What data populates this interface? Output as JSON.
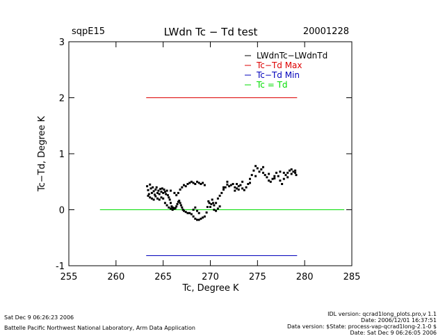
{
  "header": {
    "site": "sqpE15",
    "title": "LWdn Tc − Td test",
    "date": "20001228"
  },
  "footer": {
    "left_line1": "Sat Dec  9 06:26:23 2006",
    "left_line2": "Battelle Pacific Northwest National Laboratory, Arm Data Application",
    "right_line1": "IDL version: qcrad1long_plots.pro,v 1.1",
    "right_line2": "Date: 2006/12/01 16:37:51",
    "right_line3": "Data version: $State: process-vap-qcrad1long-2.1-0 $",
    "right_line4": "Date: Sat Dec  9 06:26:05 2006"
  },
  "colors": {
    "series": "#000000",
    "max": "#dd0000",
    "min": "#0000bb",
    "zero": "#00dd00"
  },
  "chart_data": {
    "type": "scatter",
    "xlabel": "Tc, Degree K",
    "ylabel": "Tc−Td, Degree K",
    "xlim": [
      255,
      285
    ],
    "ylim": [
      -1,
      3
    ],
    "xticks": [
      255,
      260,
      265,
      270,
      275,
      280,
      285
    ],
    "yticks": [
      -1,
      0,
      1,
      2,
      3
    ],
    "legend": [
      "LWdnTc−LWdnTd",
      "Tc−Td Max",
      "Tc−Td Min",
      "Tc = Td"
    ],
    "legend_placement": "top-right",
    "grid": false,
    "reference_lines": [
      {
        "name": "Tc−Td Max",
        "y": 2.0,
        "x": [
          263.2,
          279.2
        ]
      },
      {
        "name": "Tc−Td Min",
        "y": -0.82,
        "x": [
          263.2,
          279.2
        ]
      },
      {
        "name": "Tc = Td",
        "y": 0.0,
        "x": [
          258.3,
          284.2
        ]
      }
    ],
    "series": [
      {
        "name": "LWdnTc−LWdnTd",
        "points": [
          [
            263.3,
            0.42
          ],
          [
            263.4,
            0.35
          ],
          [
            263.5,
            0.28
          ],
          [
            263.6,
            0.45
          ],
          [
            263.7,
            0.38
          ],
          [
            263.8,
            0.3
          ],
          [
            263.9,
            0.4
          ],
          [
            264.0,
            0.33
          ],
          [
            264.1,
            0.27
          ],
          [
            264.2,
            0.36
          ],
          [
            264.3,
            0.4
          ],
          [
            264.4,
            0.3
          ],
          [
            264.5,
            0.34
          ],
          [
            264.6,
            0.28
          ],
          [
            264.7,
            0.37
          ],
          [
            264.8,
            0.32
          ],
          [
            264.9,
            0.38
          ],
          [
            265.0,
            0.3
          ],
          [
            265.1,
            0.36
          ],
          [
            265.2,
            0.32
          ],
          [
            265.3,
            0.28
          ],
          [
            265.4,
            0.34
          ],
          [
            265.5,
            0.26
          ],
          [
            265.6,
            0.22
          ],
          [
            265.7,
            0.18
          ],
          [
            265.8,
            0.12
          ],
          [
            265.9,
            0.06
          ],
          [
            266.0,
            0.04
          ],
          [
            266.1,
            0.03
          ],
          [
            266.2,
            0.02
          ],
          [
            266.3,
            0.03
          ],
          [
            266.4,
            0.06
          ],
          [
            266.5,
            0.1
          ],
          [
            266.6,
            0.14
          ],
          [
            266.7,
            0.16
          ],
          [
            266.8,
            0.12
          ],
          [
            266.9,
            0.08
          ],
          [
            267.0,
            0.04
          ],
          [
            267.1,
            0.0
          ],
          [
            267.2,
            -0.02
          ],
          [
            267.4,
            -0.04
          ],
          [
            267.6,
            -0.06
          ],
          [
            267.8,
            -0.06
          ],
          [
            268.0,
            -0.08
          ],
          [
            268.2,
            -0.12
          ],
          [
            268.4,
            -0.16
          ],
          [
            268.6,
            -0.18
          ],
          [
            268.8,
            -0.18
          ],
          [
            269.0,
            -0.16
          ],
          [
            269.2,
            -0.14
          ],
          [
            269.4,
            -0.12
          ],
          [
            269.6,
            -0.05
          ],
          [
            269.7,
            0.05
          ],
          [
            269.8,
            0.15
          ],
          [
            269.9,
            0.12
          ],
          [
            270.0,
            0.05
          ],
          [
            270.1,
            0.1
          ],
          [
            270.2,
            0.18
          ],
          [
            270.3,
            0.12
          ],
          [
            270.4,
            0.08
          ],
          [
            270.6,
            0.12
          ],
          [
            270.8,
            0.2
          ],
          [
            271.0,
            0.25
          ],
          [
            271.2,
            0.3
          ],
          [
            271.4,
            0.36
          ],
          [
            271.6,
            0.4
          ],
          [
            271.8,
            0.45
          ],
          [
            272.0,
            0.42
          ],
          [
            272.2,
            0.44
          ],
          [
            272.4,
            0.46
          ],
          [
            272.6,
            0.4
          ],
          [
            272.8,
            0.38
          ],
          [
            273.0,
            0.42
          ],
          [
            273.2,
            0.44
          ],
          [
            273.4,
            0.38
          ],
          [
            273.6,
            0.35
          ],
          [
            273.8,
            0.4
          ],
          [
            274.0,
            0.46
          ],
          [
            274.2,
            0.55
          ],
          [
            274.4,
            0.62
          ],
          [
            274.6,
            0.7
          ],
          [
            274.8,
            0.78
          ],
          [
            275.0,
            0.74
          ],
          [
            275.2,
            0.68
          ],
          [
            275.4,
            0.72
          ],
          [
            275.6,
            0.66
          ],
          [
            275.8,
            0.62
          ],
          [
            276.0,
            0.58
          ],
          [
            276.2,
            0.52
          ],
          [
            276.4,
            0.5
          ],
          [
            276.6,
            0.55
          ],
          [
            276.8,
            0.6
          ],
          [
            277.0,
            0.66
          ],
          [
            277.2,
            0.6
          ],
          [
            277.4,
            0.52
          ],
          [
            277.6,
            0.46
          ],
          [
            277.8,
            0.55
          ],
          [
            278.0,
            0.62
          ],
          [
            278.2,
            0.66
          ],
          [
            278.4,
            0.7
          ],
          [
            278.6,
            0.64
          ],
          [
            278.8,
            0.68
          ],
          [
            279.0,
            0.66
          ],
          [
            279.1,
            0.62
          ],
          [
            263.4,
            0.25
          ],
          [
            263.6,
            0.22
          ],
          [
            263.8,
            0.2
          ],
          [
            264.0,
            0.18
          ],
          [
            264.2,
            0.24
          ],
          [
            264.4,
            0.2
          ],
          [
            264.6,
            0.18
          ],
          [
            264.8,
            0.22
          ],
          [
            265.0,
            0.2
          ],
          [
            265.2,
            0.12
          ],
          [
            265.4,
            0.08
          ],
          [
            265.6,
            0.04
          ],
          [
            265.8,
            0.02
          ],
          [
            266.0,
            0.0
          ],
          [
            266.4,
            0.26
          ],
          [
            266.6,
            0.3
          ],
          [
            266.8,
            0.36
          ],
          [
            267.0,
            0.4
          ],
          [
            267.2,
            0.44
          ],
          [
            267.4,
            0.42
          ],
          [
            267.6,
            0.46
          ],
          [
            267.8,
            0.48
          ],
          [
            268.0,
            0.5
          ],
          [
            268.2,
            0.48
          ],
          [
            268.4,
            0.46
          ],
          [
            268.6,
            0.5
          ],
          [
            268.8,
            0.48
          ],
          [
            269.0,
            0.46
          ],
          [
            269.2,
            0.48
          ],
          [
            269.4,
            0.44
          ],
          [
            268.2,
            0.0
          ],
          [
            268.4,
            0.04
          ],
          [
            268.6,
            -0.02
          ],
          [
            268.8,
            -0.06
          ],
          [
            270.4,
            0.0
          ],
          [
            270.6,
            -0.02
          ],
          [
            270.8,
            0.02
          ],
          [
            271.0,
            0.06
          ],
          [
            271.4,
            0.4
          ],
          [
            271.8,
            0.5
          ],
          [
            272.8,
            0.46
          ],
          [
            273.4,
            0.5
          ],
          [
            274.2,
            0.48
          ],
          [
            274.8,
            0.6
          ],
          [
            275.6,
            0.76
          ],
          [
            276.2,
            0.64
          ],
          [
            276.8,
            0.56
          ],
          [
            277.4,
            0.68
          ],
          [
            277.8,
            0.66
          ],
          [
            278.2,
            0.58
          ],
          [
            278.6,
            0.72
          ],
          [
            279.0,
            0.7
          ],
          [
            273.0,
            0.36
          ],
          [
            272.6,
            0.34
          ],
          [
            265.8,
            0.34
          ],
          [
            266.2,
            0.3
          ]
        ]
      }
    ]
  }
}
